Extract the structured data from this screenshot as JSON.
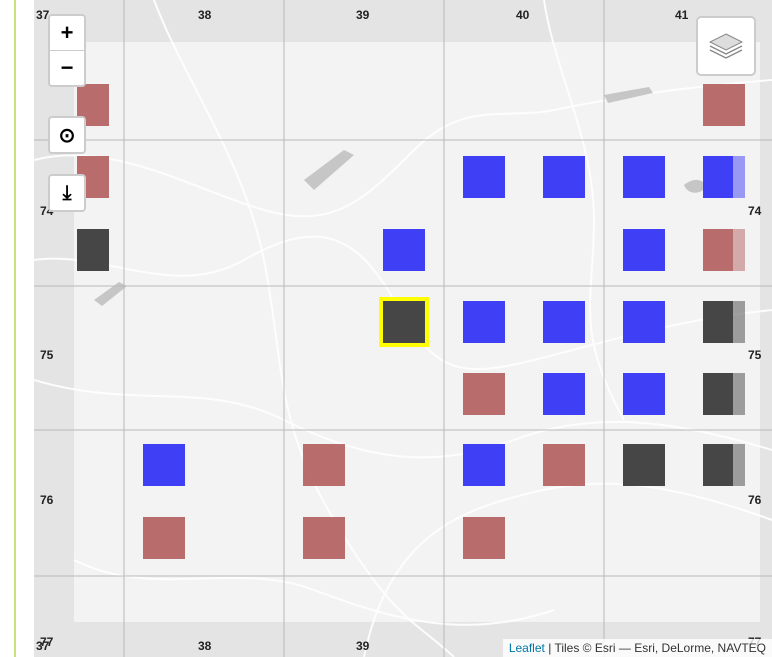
{
  "map": {
    "grid_columns": [
      "37",
      "38",
      "39",
      "40",
      "41"
    ],
    "grid_rows": [
      "74",
      "75",
      "76",
      "77"
    ],
    "colors": {
      "blue": "#3f3ff5",
      "red": "#b46161",
      "dark": "#464646",
      "selected_outline": "#ffff00"
    }
  },
  "cells": [
    {
      "row": 0,
      "col": 0,
      "color": "red",
      "partial": true
    },
    {
      "row": 0,
      "col": 8,
      "color": "red"
    },
    {
      "row": 1,
      "col": 0,
      "color": "red",
      "partial": true
    },
    {
      "row": 1,
      "col": 5,
      "color": "blue"
    },
    {
      "row": 1,
      "col": 6,
      "color": "blue"
    },
    {
      "row": 1,
      "col": 7,
      "color": "blue"
    },
    {
      "row": 1,
      "col": 8,
      "color": "blue",
      "half": true
    },
    {
      "row": 2,
      "col": 0,
      "color": "dark",
      "partial": true
    },
    {
      "row": 2,
      "col": 4,
      "color": "blue"
    },
    {
      "row": 2,
      "col": 7,
      "color": "blue"
    },
    {
      "row": 2,
      "col": 8,
      "color": "red",
      "half": true
    },
    {
      "row": 3,
      "col": 4,
      "color": "dark",
      "selected": true
    },
    {
      "row": 3,
      "col": 5,
      "color": "blue"
    },
    {
      "row": 3,
      "col": 6,
      "color": "blue"
    },
    {
      "row": 3,
      "col": 7,
      "color": "blue"
    },
    {
      "row": 3,
      "col": 8,
      "color": "dark",
      "half": true
    },
    {
      "row": 4,
      "col": 5,
      "color": "red"
    },
    {
      "row": 4,
      "col": 6,
      "color": "blue"
    },
    {
      "row": 4,
      "col": 7,
      "color": "blue"
    },
    {
      "row": 4,
      "col": 8,
      "color": "dark",
      "half": true
    },
    {
      "row": 5,
      "col": 1,
      "color": "blue"
    },
    {
      "row": 5,
      "col": 3,
      "color": "red"
    },
    {
      "row": 5,
      "col": 5,
      "color": "blue"
    },
    {
      "row": 5,
      "col": 6,
      "color": "red"
    },
    {
      "row": 5,
      "col": 7,
      "color": "dark"
    },
    {
      "row": 5,
      "col": 8,
      "color": "dark",
      "half": true
    },
    {
      "row": 6,
      "col": 1,
      "color": "red"
    },
    {
      "row": 6,
      "col": 3,
      "color": "red"
    },
    {
      "row": 6,
      "col": 5,
      "color": "red"
    }
  ],
  "controls": {
    "zoom_in": "+",
    "zoom_out": "−",
    "locate": "⊙",
    "download": "⤓"
  },
  "attribution": {
    "leaflet": "Leaflet",
    "separator": "|",
    "tiles": "Tiles © Esri — Esri, DeLorme, NAVTEQ"
  }
}
